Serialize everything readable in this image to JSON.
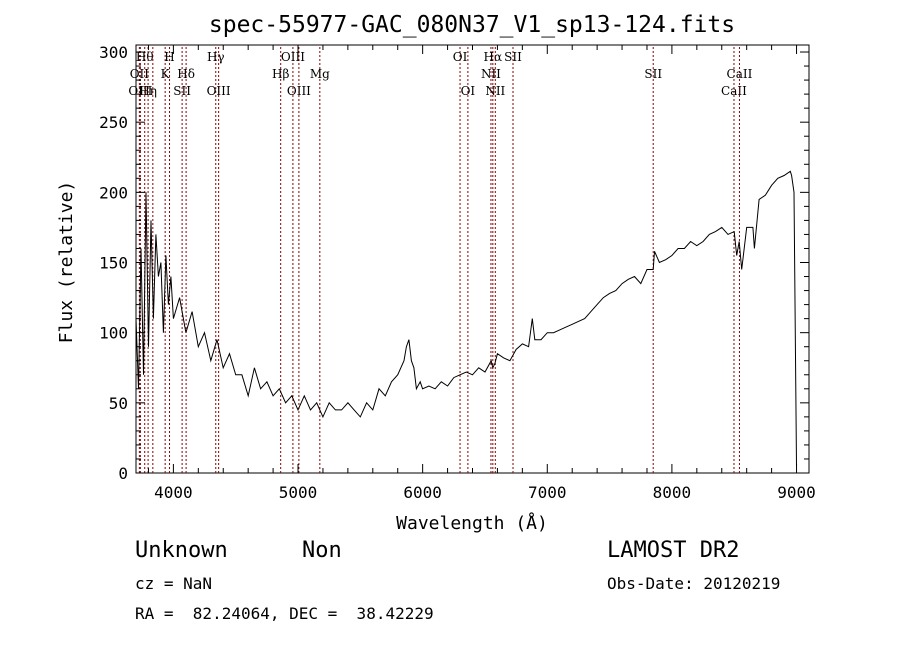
{
  "chart_data": {
    "type": "line",
    "title": "spec-55977-GAC_080N37_V1_sp13-124.fits",
    "xlabel": "Wavelength (Å)",
    "ylabel": "Flux (relative)",
    "xlim": [
      3700,
      9100
    ],
    "ylim": [
      0,
      305
    ],
    "xticks": [
      4000,
      5000,
      6000,
      7000,
      8000,
      9000
    ],
    "yticks": [
      0,
      50,
      100,
      150,
      200,
      250,
      300
    ],
    "grid": false,
    "series": [
      {
        "x": [
          3700,
          3720,
          3740,
          3760,
          3780,
          3800,
          3820,
          3840,
          3860,
          3880,
          3900,
          3920,
          3940,
          3960,
          3980,
          4000,
          4050,
          4100,
          4150,
          4200,
          4250,
          4300,
          4350,
          4400,
          4450,
          4500,
          4550,
          4600,
          4650,
          4700,
          4750,
          4800,
          4850,
          4900,
          4950,
          5000,
          5050,
          5100,
          5150,
          5200,
          5250,
          5300,
          5350,
          5400,
          5450,
          5500,
          5550,
          5600,
          5650,
          5700,
          5750,
          5800,
          5850,
          5870,
          5890,
          5910,
          5930,
          5950,
          5980,
          6000,
          6050,
          6100,
          6150,
          6200,
          6250,
          6300,
          6350,
          6400,
          6450,
          6500,
          6550,
          6563,
          6580,
          6600,
          6650,
          6700,
          6750,
          6800,
          6850,
          6880,
          6900,
          6950,
          7000,
          7050,
          7100,
          7150,
          7200,
          7250,
          7300,
          7350,
          7400,
          7450,
          7500,
          7550,
          7600,
          7650,
          7700,
          7750,
          7800,
          7850,
          7860,
          7900,
          7950,
          8000,
          8050,
          8100,
          8150,
          8200,
          8250,
          8300,
          8350,
          8400,
          8450,
          8500,
          8520,
          8540,
          8560,
          8600,
          8650,
          8662,
          8700,
          8750,
          8800,
          8850,
          8900,
          8950,
          8960,
          8980,
          9000
        ],
        "y": [
          110,
          60,
          160,
          70,
          200,
          90,
          180,
          110,
          170,
          140,
          150,
          100,
          155,
          120,
          140,
          110,
          125,
          100,
          115,
          90,
          100,
          80,
          95,
          75,
          85,
          70,
          70,
          55,
          75,
          60,
          65,
          55,
          60,
          50,
          55,
          45,
          55,
          45,
          50,
          40,
          50,
          45,
          45,
          50,
          45,
          40,
          50,
          45,
          60,
          55,
          65,
          70,
          80,
          90,
          95,
          80,
          75,
          60,
          65,
          60,
          62,
          60,
          65,
          62,
          68,
          70,
          72,
          70,
          75,
          72,
          80,
          75,
          78,
          85,
          82,
          80,
          88,
          92,
          90,
          110,
          95,
          95,
          100,
          100,
          102,
          104,
          106,
          108,
          110,
          115,
          120,
          125,
          128,
          130,
          135,
          138,
          140,
          135,
          145,
          145,
          158,
          150,
          152,
          155,
          160,
          160,
          165,
          162,
          165,
          170,
          172,
          175,
          170,
          172,
          155,
          165,
          145,
          175,
          175,
          160,
          195,
          198,
          205,
          210,
          212,
          215,
          212,
          200,
          5
        ]
      }
    ],
    "line_markers": [
      {
        "wavelength": 3727,
        "label": "OII",
        "row": 2
      },
      {
        "wavelength": 3735,
        "label": "OIII",
        "row": 3
      },
      {
        "wavelength": 3770,
        "label": "Hθ",
        "row": 1
      },
      {
        "wavelength": 3797,
        "label": "Hη",
        "row": 3
      },
      {
        "wavelength": 3835,
        "label": "",
        "row": 0
      },
      {
        "wavelength": 3934,
        "label": "K",
        "row": 2
      },
      {
        "wavelength": 3969,
        "label": "H",
        "row": 1
      },
      {
        "wavelength": 4070,
        "label": "SII",
        "row": 3
      },
      {
        "wavelength": 4102,
        "label": "Hδ",
        "row": 2
      },
      {
        "wavelength": 4340,
        "label": "Hγ",
        "row": 1
      },
      {
        "wavelength": 4363,
        "label": "OIII",
        "row": 3
      },
      {
        "wavelength": 4861,
        "label": "Hβ",
        "row": 2
      },
      {
        "wavelength": 4959,
        "label": "OIII",
        "row": 1
      },
      {
        "wavelength": 5007,
        "label": "OIII",
        "row": 3
      },
      {
        "wavelength": 5175,
        "label": "Mg",
        "row": 2
      },
      {
        "wavelength": 6300,
        "label": "OI",
        "row": 1
      },
      {
        "wavelength": 6363,
        "label": "OI",
        "row": 3
      },
      {
        "wavelength": 6548,
        "label": "NII",
        "row": 2
      },
      {
        "wavelength": 6563,
        "label": "Hα",
        "row": 1
      },
      {
        "wavelength": 6583,
        "label": "NII",
        "row": 3
      },
      {
        "wavelength": 6725,
        "label": "SII",
        "row": 1
      },
      {
        "wavelength": 7850,
        "label": "SII",
        "row": 2
      },
      {
        "wavelength": 8498,
        "label": "CaII",
        "row": 3
      },
      {
        "wavelength": 8542,
        "label": "CaII",
        "row": 2
      }
    ]
  },
  "info": {
    "class_label": "Unknown",
    "subclass_label": "Non",
    "survey_label": "LAMOST DR2",
    "cz": "cz = NaN",
    "obs_date": "Obs-Date: 20120219",
    "coords": "RA =  82.24064, DEC =  38.42229"
  },
  "colors": {
    "axes": "#000000",
    "spectrum": "#000000",
    "marker_line": "#8b0000"
  }
}
